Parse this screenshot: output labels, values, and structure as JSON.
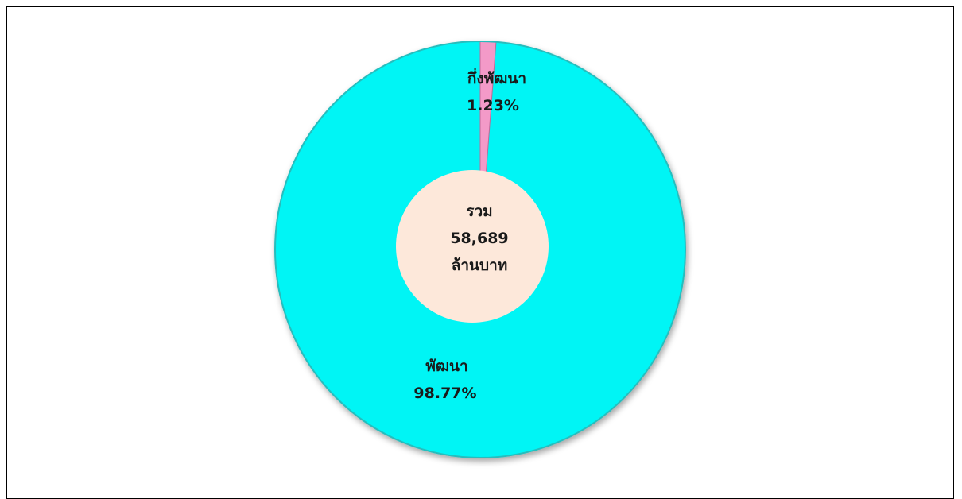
{
  "chart_data": {
    "type": "pie",
    "style": "donut",
    "categories": [
      "พัฒนา",
      "กึ่งพัฒนา"
    ],
    "values": [
      98.77,
      1.23
    ],
    "value_labels": [
      "98.77%",
      "1.23%"
    ],
    "colors": [
      "#00f5f5",
      "#f39ac8"
    ],
    "center_label": {
      "line1": "รวม",
      "line2": "58,689",
      "line3": "ล้านบาท",
      "color": "#fde8da"
    },
    "legend": "none"
  }
}
